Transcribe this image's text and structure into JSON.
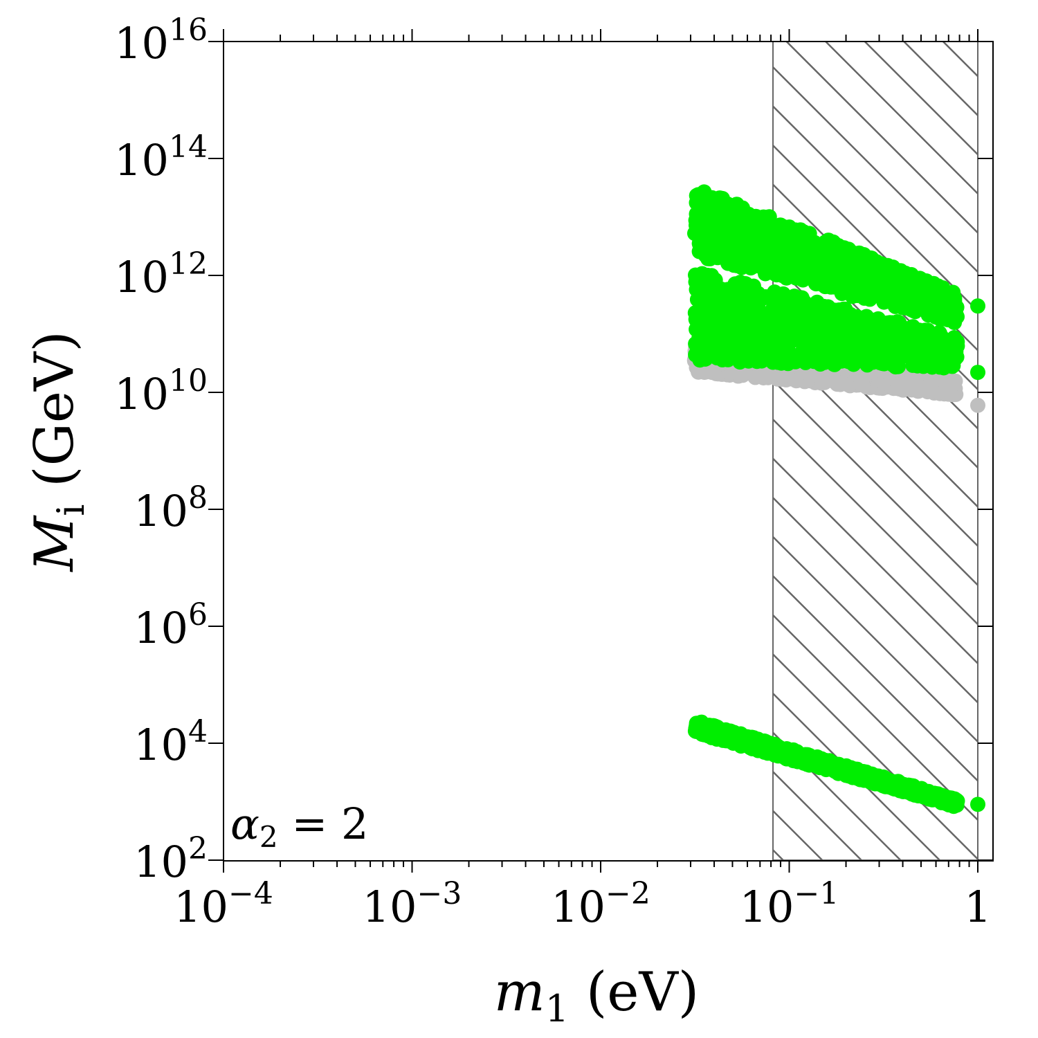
{
  "chart_data": {
    "type": "scatter",
    "title": "",
    "x_scale": "log",
    "y_scale": "log",
    "xlim": [
      0.0001,
      1
    ],
    "ylim": [
      100,
      10000000000000000
    ],
    "grid": false,
    "annotation": {
      "symbol": "α",
      "subscript": "2",
      "rest": " = 2"
    },
    "xlabel": {
      "symbol": "m",
      "subscript": "1",
      "unit": " (eV)"
    },
    "ylabel": {
      "symbol": "M",
      "subscript": "i",
      "unit": " (GeV)"
    },
    "x_ticks": [
      {
        "value": 0.0001,
        "base": "10",
        "exp": "−4"
      },
      {
        "value": 0.001,
        "base": "10",
        "exp": "−3"
      },
      {
        "value": 0.01,
        "base": "10",
        "exp": "−2"
      },
      {
        "value": 0.1,
        "base": "10",
        "exp": "−1"
      },
      {
        "value": 1,
        "base": "1",
        "exp": ""
      }
    ],
    "y_ticks": [
      {
        "value": 100,
        "base": "10",
        "exp": "2"
      },
      {
        "value": 10000,
        "base": "10",
        "exp": "4"
      },
      {
        "value": 1000000,
        "base": "10",
        "exp": "6"
      },
      {
        "value": 100000000,
        "base": "10",
        "exp": "8"
      },
      {
        "value": 10000000000,
        "base": "10",
        "exp": "10"
      },
      {
        "value": 1000000000000,
        "base": "10",
        "exp": "12"
      },
      {
        "value": 100000000000000,
        "base": "10",
        "exp": "14"
      },
      {
        "value": 10000000000000000,
        "base": "10",
        "exp": "16"
      }
    ],
    "excluded_region": {
      "x_from": 0.082,
      "x_to": 1,
      "pattern": "diagonal hatch"
    },
    "series": [
      {
        "color": "#bfbfbf",
        "bands": [
          {
            "x_range": [
              0.0315,
              0.78
            ],
            "lower": [
              22000000000.0,
              9000000000.0
            ],
            "upper": [
              60000000000.0,
              16000000000.0
            ]
          }
        ],
        "isolated_points": [
          {
            "x": 1.0,
            "y": 6000000000.0
          }
        ]
      },
      {
        "color": "#00ee00",
        "bands": [
          {
            "x_range": [
              0.0315,
              0.78
            ],
            "lower": [
              2200000000000.0,
              150000000000.0
            ],
            "upper": [
              35000000000000.0,
              500000000000.0
            ]
          },
          {
            "x_range": [
              0.0315,
              0.78
            ],
            "lower": [
              35000000000.0,
              25000000000.0
            ],
            "upper": [
              1200000000000.0,
              90000000000.0
            ]
          },
          {
            "x_range": [
              0.0315,
              0.78
            ],
            "lower": [
              15000.0,
              800.0
            ],
            "upper": [
              25000.0,
              1100.0
            ]
          }
        ],
        "isolated_points": [
          {
            "x": 1.0,
            "y": 300000000000.0
          },
          {
            "x": 1.0,
            "y": 22000000000.0
          },
          {
            "x": 1.0,
            "y": 900.0
          }
        ]
      }
    ]
  }
}
